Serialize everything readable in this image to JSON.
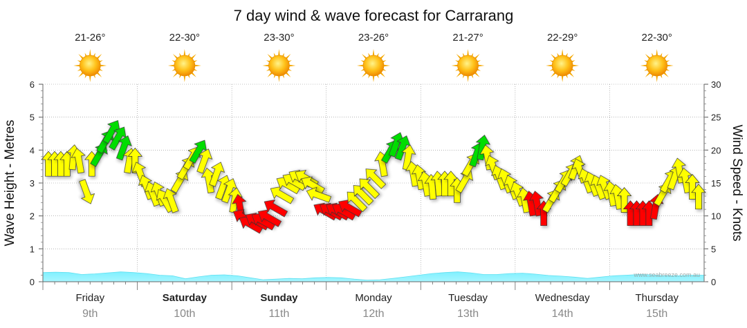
{
  "chart_data": {
    "type": "line",
    "title": "7 day wind & wave forecast for Carrarang",
    "ylabel_left": "Wave Height - Metres",
    "ylabel_right": "Wind Speed - Knots",
    "ylim_left": [
      0,
      6
    ],
    "ylim_right": [
      0,
      30
    ],
    "yticks_left": [
      "0",
      "1",
      "2",
      "3",
      "4",
      "5",
      "6"
    ],
    "yticks_right": [
      "0",
      "5",
      "10",
      "15",
      "20",
      "25",
      "30"
    ],
    "days": [
      {
        "name": "Friday",
        "date": "9th",
        "bold": false,
        "temp": "21-26°",
        "icon": "sun-icon"
      },
      {
        "name": "Saturday",
        "date": "10th",
        "bold": true,
        "temp": "22-30°",
        "icon": "sun-icon"
      },
      {
        "name": "Sunday",
        "date": "11th",
        "bold": true,
        "temp": "23-30°",
        "icon": "sun-icon"
      },
      {
        "name": "Monday",
        "date": "12th",
        "bold": false,
        "temp": "23-26°",
        "icon": "sun-icon"
      },
      {
        "name": "Tuesday",
        "date": "13th",
        "bold": false,
        "temp": "21-27°",
        "icon": "sun-icon"
      },
      {
        "name": "Wednesday",
        "date": "14th",
        "bold": false,
        "temp": "22-29°",
        "icon": "sun-icon"
      },
      {
        "name": "Thursday",
        "date": "15th",
        "bold": false,
        "temp": "22-30°",
        "icon": "sun-icon"
      }
    ],
    "series": [
      {
        "name": "Wind Speed (knots)",
        "axis": "right",
        "values": [
          17.5,
          17.5,
          17.5,
          17.5,
          18.5,
          18,
          14,
          17.5,
          19,
          21,
          22.5,
          21.5,
          20,
          18,
          18,
          16,
          14,
          13,
          13,
          12,
          12,
          15,
          17,
          18.5,
          19.5,
          18,
          15,
          16,
          14,
          13.5,
          12,
          11,
          9.5,
          8.5,
          9,
          9,
          9.5,
          11,
          13,
          14.5,
          15,
          15.5,
          15.5,
          14.5,
          13,
          10.5,
          10.5,
          10.5,
          10.5,
          11,
          12,
          13,
          14,
          15.5,
          17.5,
          19.5,
          20.5,
          20,
          18.5,
          16,
          15.5,
          14.5,
          14,
          14.5,
          14.5,
          14.5,
          13.5,
          15,
          17.5,
          19,
          20,
          18.5,
          17,
          15.5,
          15,
          14,
          13,
          12,
          11.5,
          11.5,
          10,
          12,
          13.5,
          15,
          16,
          17,
          16.5,
          15,
          14.5,
          14,
          14,
          13,
          12.5,
          12,
          10,
          10,
          10,
          10,
          11,
          13,
          15,
          15.5,
          16.5,
          15,
          14,
          12.5
        ],
        "directions_deg": [
          0,
          0,
          0,
          0,
          5,
          -10,
          160,
          0,
          30,
          30,
          30,
          30,
          20,
          10,
          0,
          -20,
          -20,
          -20,
          -20,
          -30,
          -20,
          30,
          30,
          30,
          30,
          20,
          -10,
          20,
          20,
          20,
          10,
          -10,
          -60,
          -60,
          -60,
          -60,
          -60,
          -60,
          -60,
          -60,
          -60,
          -60,
          -60,
          -60,
          -70,
          -60,
          -60,
          -60,
          -60,
          -60,
          -45,
          -45,
          -45,
          -45,
          -10,
          30,
          20,
          20,
          10,
          -10,
          -10,
          -10,
          -5,
          -5,
          0,
          0,
          0,
          30,
          30,
          20,
          10,
          -10,
          -20,
          -20,
          -20,
          -20,
          -20,
          -10,
          -10,
          -10,
          0,
          30,
          30,
          30,
          30,
          20,
          -20,
          -20,
          -20,
          -20,
          -20,
          -10,
          -10,
          0,
          0,
          0,
          0,
          0,
          10,
          30,
          30,
          20,
          -10,
          -10
        ],
        "colors_by_speed": {
          "low": "#ff0000",
          "mid": "#ffff00",
          "high": "#00dd00"
        }
      },
      {
        "name": "Wave Height (m)",
        "axis": "left",
        "values": [
          0.28,
          0.29,
          0.28,
          0.22,
          0.24,
          0.27,
          0.3,
          0.28,
          0.25,
          0.2,
          0.18,
          0.09,
          0.15,
          0.2,
          0.21,
          0.18,
          0.12,
          0.06,
          0.08,
          0.1,
          0.09,
          0.12,
          0.13,
          0.12,
          0.08,
          0.05,
          0.06,
          0.1,
          0.15,
          0.2,
          0.25,
          0.28,
          0.3,
          0.27,
          0.22,
          0.22,
          0.25,
          0.26,
          0.23,
          0.19,
          0.17,
          0.14,
          0.1,
          0.14,
          0.18,
          0.2,
          0.22,
          0.21,
          0.18,
          0.18,
          0.2,
          0.2
        ]
      }
    ],
    "credit": "www.seabreeze.com.au"
  }
}
